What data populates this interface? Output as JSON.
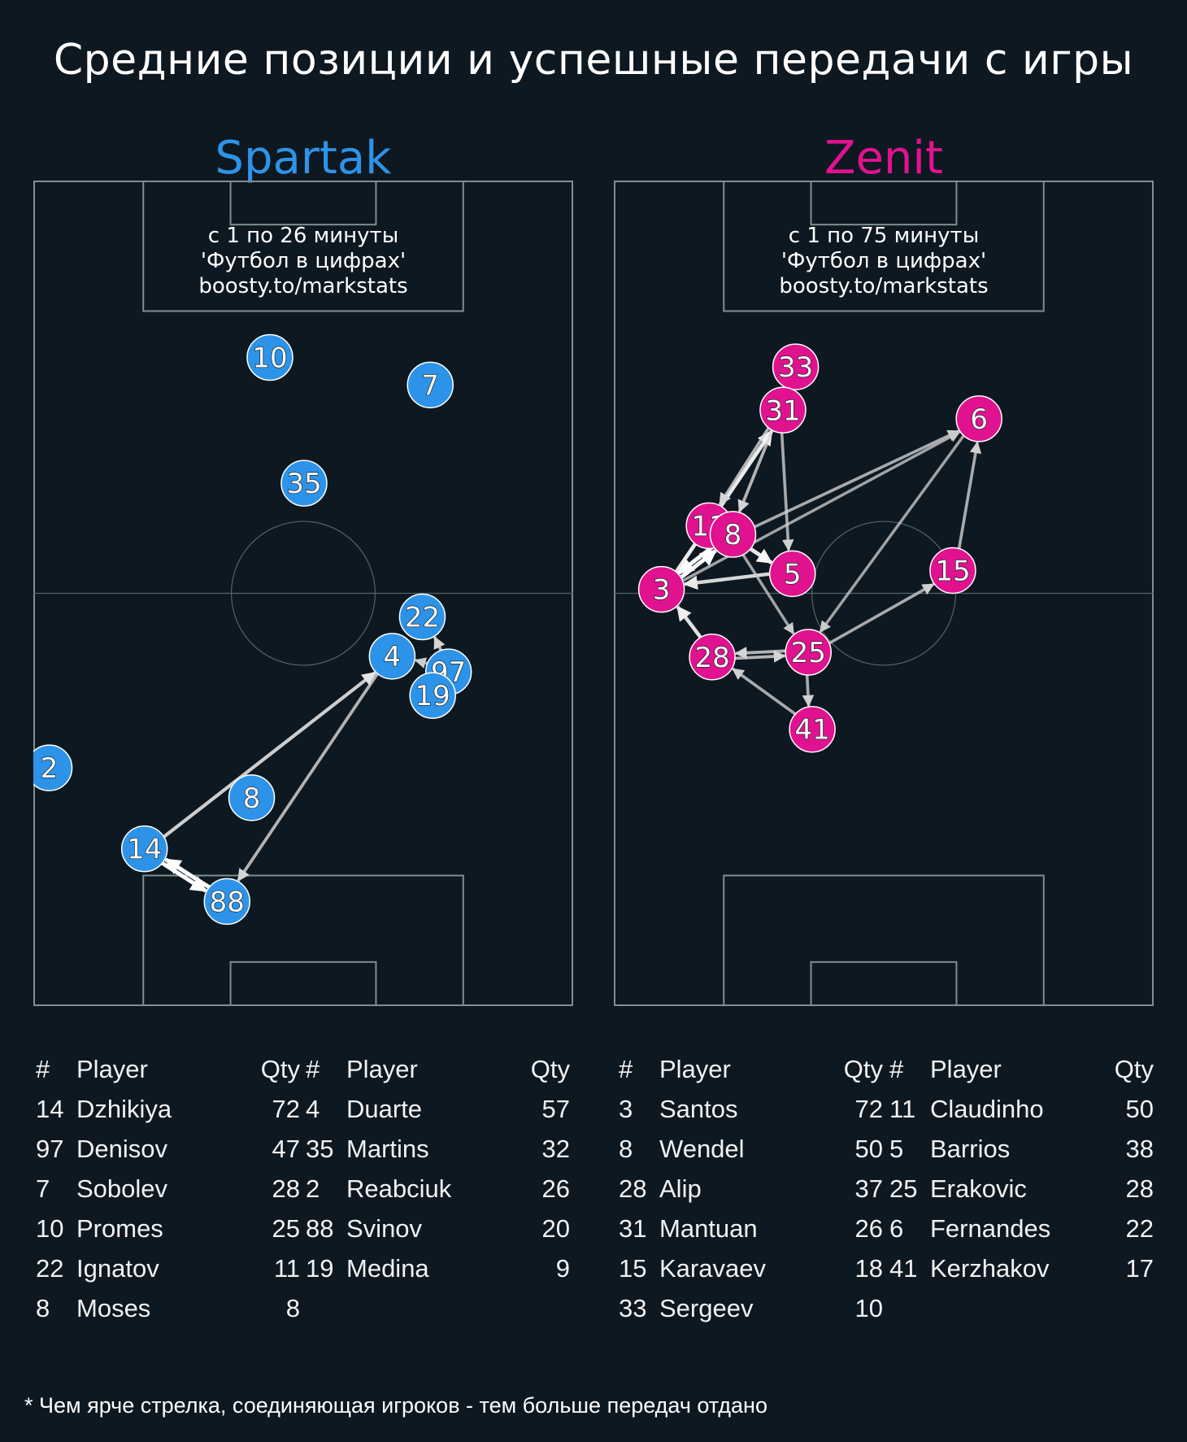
{
  "title": "Средние позиции и успешные передачи с игры",
  "footnote": "* Чем ярче стрелка, соединяющая игроков - тем больше передач отдано",
  "colors": {
    "background": "#0e1820",
    "spartak": "#2d93e8",
    "zenit": "#e0128f",
    "pitch_lines": "#7d8f8e"
  },
  "table_headers": {
    "num": "#",
    "player": "Player",
    "qty": "Qty"
  },
  "teams": [
    {
      "name": "Spartak",
      "color": "#2d93e8",
      "notes": [
        "с 1 по 26 минуты",
        "'Футбол в цифрах'",
        "boosty.to/markstats"
      ],
      "roster_left": [
        {
          "num": "14",
          "player": "Dzhikiya",
          "qty": 72
        },
        {
          "num": "97",
          "player": "Denisov",
          "qty": 47
        },
        {
          "num": "7",
          "player": "Sobolev",
          "qty": 28
        },
        {
          "num": "10",
          "player": "Promes",
          "qty": 25
        },
        {
          "num": "22",
          "player": "Ignatov",
          "qty": 11
        },
        {
          "num": "8",
          "player": "Moses",
          "qty": 8
        }
      ],
      "roster_right": [
        {
          "num": "4",
          "player": "Duarte",
          "qty": 57
        },
        {
          "num": "35",
          "player": "Martins",
          "qty": 32
        },
        {
          "num": "2",
          "player": "Reabciuk",
          "qty": 26
        },
        {
          "num": "88",
          "player": "Svinov",
          "qty": 20
        },
        {
          "num": "19",
          "player": "Medina",
          "qty": 9
        }
      ]
    },
    {
      "name": "Zenit",
      "color": "#e0128f",
      "notes": [
        "с 1 по 75 минуты",
        "'Футбол в цифрах'",
        "boosty.to/markstats"
      ],
      "roster_left": [
        {
          "num": "3",
          "player": "Santos",
          "qty": 72
        },
        {
          "num": "8",
          "player": "Wendel",
          "qty": 50
        },
        {
          "num": "28",
          "player": "Alip",
          "qty": 37
        },
        {
          "num": "31",
          "player": "Mantuan",
          "qty": 26
        },
        {
          "num": "15",
          "player": "Karavaev",
          "qty": 18
        },
        {
          "num": "33",
          "player": "Sergeev",
          "qty": 10
        }
      ],
      "roster_right": [
        {
          "num": "11",
          "player": "Claudinho",
          "qty": 50
        },
        {
          "num": "5",
          "player": "Barrios",
          "qty": 38
        },
        {
          "num": "25",
          "player": "Erakovic",
          "qty": 28
        },
        {
          "num": "6",
          "player": "Fernandes",
          "qty": 22
        },
        {
          "num": "41",
          "player": "Kerzhakov",
          "qty": 17
        }
      ]
    }
  ],
  "chart_data": [
    {
      "type": "scatter",
      "title": "Spartak",
      "pitch": {
        "length": 105,
        "width": 68
      },
      "players": [
        {
          "num": "10",
          "x": 22.5,
          "y": 29.8
        },
        {
          "num": "22",
          "x": 55.5,
          "y": 49.0
        },
        {
          "num": "7",
          "x": 26.0,
          "y": 50.0
        },
        {
          "num": "35",
          "x": 38.5,
          "y": 34.1
        },
        {
          "num": "4",
          "x": 60.5,
          "y": 45.2
        },
        {
          "num": "97",
          "x": 62.5,
          "y": 52.3
        },
        {
          "num": "19",
          "x": 65.5,
          "y": 50.3
        },
        {
          "num": "2",
          "x": 74.7,
          "y": 2.0
        },
        {
          "num": "8",
          "x": 78.5,
          "y": 27.5
        },
        {
          "num": "14",
          "x": 85.0,
          "y": 14.0
        },
        {
          "num": "88",
          "x": 91.7,
          "y": 24.4
        }
      ],
      "passes": [
        {
          "from": "14",
          "to": "88",
          "weight": 1.0
        },
        {
          "from": "88",
          "to": "14",
          "weight": 1.0
        },
        {
          "from": "14",
          "to": "4",
          "weight": 0.75
        },
        {
          "from": "4",
          "to": "88",
          "weight": 0.6
        },
        {
          "from": "97",
          "to": "22",
          "weight": 0.6
        },
        {
          "from": "97",
          "to": "4",
          "weight": 0.5
        }
      ]
    },
    {
      "type": "scatter",
      "title": "Zenit",
      "pitch": {
        "length": 105,
        "width": 68
      },
      "players": [
        {
          "num": "33",
          "x": 23.7,
          "y": 22.9
        },
        {
          "num": "31",
          "x": 29.2,
          "y": 21.3
        },
        {
          "num": "6",
          "x": 30.3,
          "y": 46.0
        },
        {
          "num": "11",
          "x": 43.9,
          "y": 12.0
        },
        {
          "num": "8",
          "x": 45.0,
          "y": 15.0
        },
        {
          "num": "5",
          "x": 50.0,
          "y": 22.5
        },
        {
          "num": "15",
          "x": 49.6,
          "y": 42.7
        },
        {
          "num": "3",
          "x": 52.0,
          "y": 6.0
        },
        {
          "num": "28",
          "x": 60.6,
          "y": 12.4
        },
        {
          "num": "25",
          "x": 60.0,
          "y": 24.5
        },
        {
          "num": "41",
          "x": 69.8,
          "y": 25.0
        }
      ],
      "passes": [
        {
          "from": "3",
          "to": "8",
          "weight": 1.0
        },
        {
          "from": "8",
          "to": "3",
          "weight": 1.0
        },
        {
          "from": "3",
          "to": "31",
          "weight": 0.9
        },
        {
          "from": "28",
          "to": "3",
          "weight": 0.85
        },
        {
          "from": "5",
          "to": "3",
          "weight": 0.8
        },
        {
          "from": "8",
          "to": "5",
          "weight": 0.9
        },
        {
          "from": "31",
          "to": "11",
          "weight": 0.6
        },
        {
          "from": "31",
          "to": "8",
          "weight": 0.6
        },
        {
          "from": "31",
          "to": "5",
          "weight": 0.55
        },
        {
          "from": "8",
          "to": "6",
          "weight": 0.55
        },
        {
          "from": "3",
          "to": "6",
          "weight": 0.5
        },
        {
          "from": "6",
          "to": "25",
          "weight": 0.5
        },
        {
          "from": "15",
          "to": "6",
          "weight": 0.55
        },
        {
          "from": "25",
          "to": "15",
          "weight": 0.55
        },
        {
          "from": "28",
          "to": "25",
          "weight": 0.6
        },
        {
          "from": "25",
          "to": "28",
          "weight": 0.6
        },
        {
          "from": "8",
          "to": "25",
          "weight": 0.5
        },
        {
          "from": "25",
          "to": "41",
          "weight": 0.55
        },
        {
          "from": "41",
          "to": "28",
          "weight": 0.55
        }
      ]
    }
  ]
}
